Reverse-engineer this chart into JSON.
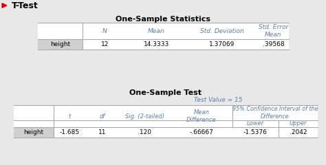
{
  "title": "T-Test",
  "title_arrow_color": "#dd0000",
  "background_color": "#e8e8e8",
  "header_text_color": "#5b7fa6",
  "row_label_bg": "#d0d0d0",
  "border_color": "#aaaaaa",
  "table1_title": "One-Sample Statistics",
  "table1_headers": [
    "N",
    "Mean",
    "Std. Deviation",
    "Std. Error\nMean"
  ],
  "table1_row": [
    "height",
    "12",
    "14.3333",
    "1.37069",
    ".39568"
  ],
  "table2_title": "One-Sample Test",
  "table2_subheader": "Test Value = 15",
  "table2_headers": [
    "t",
    "df",
    "Sig. (2-tailed)",
    "Mean\nDifference"
  ],
  "table2_ci_header": "95% Confidence Interval of the\nDifference",
  "table2_sub_headers": [
    "Lower",
    "Upper"
  ],
  "table2_row": [
    "height",
    "-1.685",
    "11",
    ".120",
    "-.66667",
    "-1.5376",
    ".2042"
  ]
}
